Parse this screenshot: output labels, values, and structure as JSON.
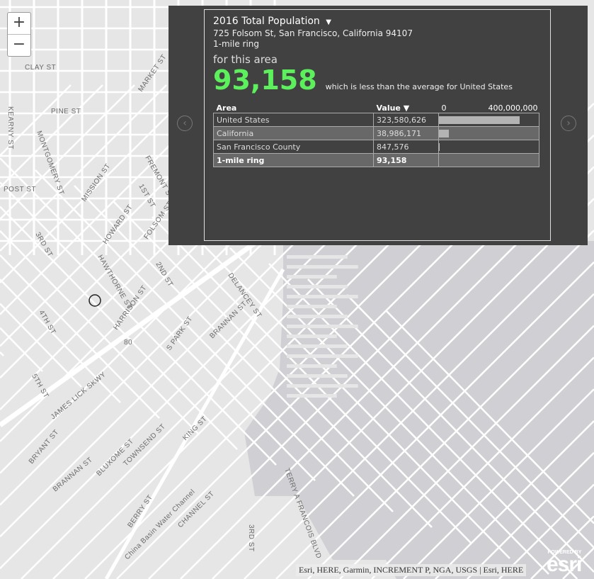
{
  "map": {
    "zoom_in": "+",
    "zoom_out": "−",
    "street_labels": [
      "CLAY ST",
      "PINE ST",
      "KEARNY ST",
      "MONTGOMERY ST",
      "MARKET ST",
      "FREMONT ST",
      "MISSION ST",
      "1ST ST",
      "HOWARD ST",
      "FOLSOM ST",
      "3RD ST",
      "HAWTHORNE ST",
      "2ND ST",
      "HARRISON ST",
      "4TH ST",
      "DELANCEY ST",
      "BRANNAN ST",
      "S PARK ST",
      "5TH ST",
      "JAMES LICK SKWY",
      "KING ST",
      "BRYANT ST",
      "BLUXOME ST",
      "TOWNSEND ST",
      "BRANNAN ST",
      "BERRY ST",
      "CHANNEL ST",
      "China Basin Water Channel",
      "3RD ST",
      "TERRY A FRANCOIS BLVD",
      "POST ST",
      "80"
    ],
    "land_color": "#e6e6e6",
    "water_color": "#d0d0d4"
  },
  "panel": {
    "title": "2016 Total Population",
    "title_dropdown": "▼",
    "address": "725 Folsom St, San Francisco, California 94107",
    "ring": "1-mile ring",
    "for_area": "for this area",
    "value": "93,158",
    "comparison": "which is less than the average for United States",
    "prev": "‹",
    "next": "›",
    "table": {
      "col_area": "Area",
      "col_value": "Value ▼",
      "axis_min": "0",
      "axis_max": "400,000,000",
      "axis_max_value": 400000000,
      "rows": [
        {
          "area": "United States",
          "value": "323,580,626",
          "num": 323580626
        },
        {
          "area": "California",
          "value": "38,986,171",
          "num": 38986171
        },
        {
          "area": "San Francisco County",
          "value": "847,576",
          "num": 847576
        },
        {
          "area": "1-mile ring",
          "value": "93,158",
          "num": 93158
        }
      ]
    }
  },
  "attribution": "Esri, HERE, Garmin, INCREMENT P, NGA, USGS | Esri, HERE",
  "logo": {
    "powered": "POWERED BY",
    "name": "esri"
  }
}
